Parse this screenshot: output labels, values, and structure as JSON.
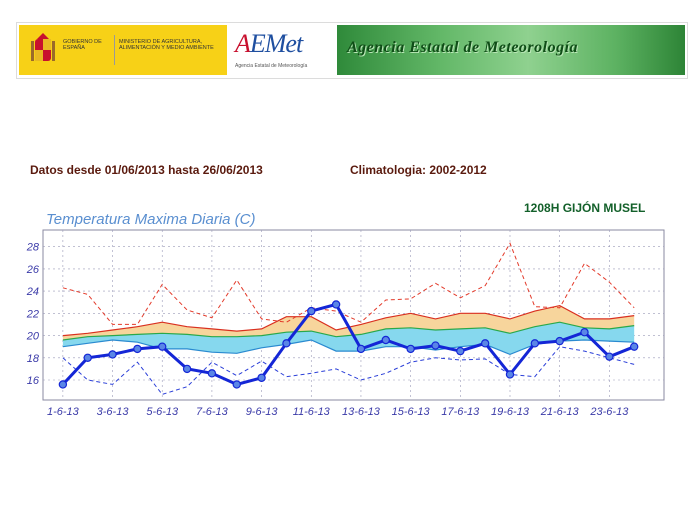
{
  "header": {
    "gobierno": "GOBIERNO DE ESPAÑA",
    "ministerio": "MINISTERIO DE AGRICULTURA, ALIMENTACIÓN Y MEDIO AMBIENTE",
    "aemet_logo_a": "A",
    "aemet_logo_rest": "EMet",
    "aemet_sub": "Agencia Estatal de Meteorología",
    "agency_title": "Agencia Estatal de Meteorología"
  },
  "info": {
    "period": "Datos desde 01/06/2013 hasta 26/06/2013",
    "climatology": "Climatologia: 2002-2012",
    "station": "1208H  GIJÓN MUSEL"
  },
  "chart_data": {
    "type": "line",
    "title": "Temperatura Maxima Diaria (C)",
    "x": [
      1,
      2,
      3,
      4,
      5,
      6,
      7,
      8,
      9,
      10,
      11,
      12,
      13,
      14,
      15,
      16,
      17,
      18,
      19,
      20,
      21,
      22,
      23,
      24
    ],
    "x_tick_labels": [
      "1-6-13",
      "3-6-13",
      "5-6-13",
      "7-6-13",
      "9-6-13",
      "11-6-13",
      "13-6-13",
      "15-6-13",
      "17-6-13",
      "19-6-13",
      "21-6-13",
      "23-6-13"
    ],
    "x_tick_positions": [
      1,
      3,
      5,
      7,
      9,
      11,
      13,
      15,
      17,
      19,
      21,
      23
    ],
    "y_ticks": [
      16,
      18,
      20,
      22,
      24,
      26,
      28
    ],
    "ylim": [
      14.2,
      29.5
    ],
    "xlim": [
      0.2,
      25.2
    ],
    "grid": true,
    "series": [
      {
        "name": "",
        "role": "observed",
        "color": "#1426d6",
        "values": [
          15.6,
          18.0,
          18.3,
          18.8,
          19.0,
          17.0,
          16.6,
          15.6,
          16.2,
          19.3,
          22.2,
          22.8,
          18.8,
          19.6,
          18.8,
          19.1,
          18.6,
          19.3,
          16.5,
          19.3,
          19.5,
          20.3,
          18.1,
          19.0
        ]
      },
      {
        "name": "",
        "role": "upper-extreme",
        "color": "#e33a2a",
        "values": [
          24.3,
          23.7,
          21.0,
          21.0,
          24.6,
          22.3,
          21.6,
          25.0,
          21.5,
          21.2,
          22.5,
          22.2,
          21.2,
          23.2,
          23.3,
          24.7,
          23.4,
          24.5,
          28.3,
          22.6,
          22.5,
          26.5,
          24.8,
          22.5
        ]
      },
      {
        "name": "",
        "role": "lower-extreme",
        "color": "#2b3fd8",
        "values": [
          18.0,
          16.0,
          15.6,
          17.6,
          14.7,
          15.4,
          17.6,
          16.4,
          17.7,
          16.3,
          16.6,
          17.0,
          16.0,
          16.6,
          17.6,
          18.0,
          17.8,
          17.9,
          16.5,
          16.3,
          19.0,
          18.6,
          18.0,
          17.4
        ]
      },
      {
        "name": "",
        "role": "mean-max-upper-band",
        "color": "#d93020",
        "values": [
          20.0,
          20.2,
          20.5,
          20.8,
          21.2,
          20.8,
          20.6,
          20.4,
          20.6,
          21.7,
          21.7,
          20.5,
          21.0,
          21.6,
          22.0,
          21.5,
          22.0,
          22.0,
          21.5,
          22.2,
          22.7,
          21.5,
          21.5,
          21.8
        ]
      },
      {
        "name": "",
        "role": "median",
        "color": "#2aa84a",
        "values": [
          19.6,
          19.9,
          20.0,
          20.1,
          20.2,
          20.1,
          19.9,
          19.9,
          20.0,
          20.3,
          20.4,
          19.9,
          20.1,
          20.6,
          20.7,
          20.5,
          20.6,
          20.7,
          20.2,
          20.8,
          21.2,
          20.7,
          20.6,
          20.9
        ]
      },
      {
        "name": "",
        "role": "mean-max-lower-band",
        "color": "#2a8ad0",
        "values": [
          19.0,
          19.3,
          19.6,
          19.4,
          18.8,
          18.8,
          18.5,
          18.4,
          18.9,
          19.2,
          19.6,
          18.6,
          18.6,
          19.0,
          19.0,
          18.7,
          19.0,
          19.2,
          18.3,
          19.2,
          19.5,
          19.6,
          19.5,
          19.4
        ]
      }
    ],
    "colors": {
      "band_upper": "#f7d59c",
      "band_lower": "#86d8ee",
      "band_mid": "#b8e4a8",
      "plot_bg": "#ffffff",
      "title": "#5a8fd0",
      "tick": "#3a3aa8"
    }
  }
}
